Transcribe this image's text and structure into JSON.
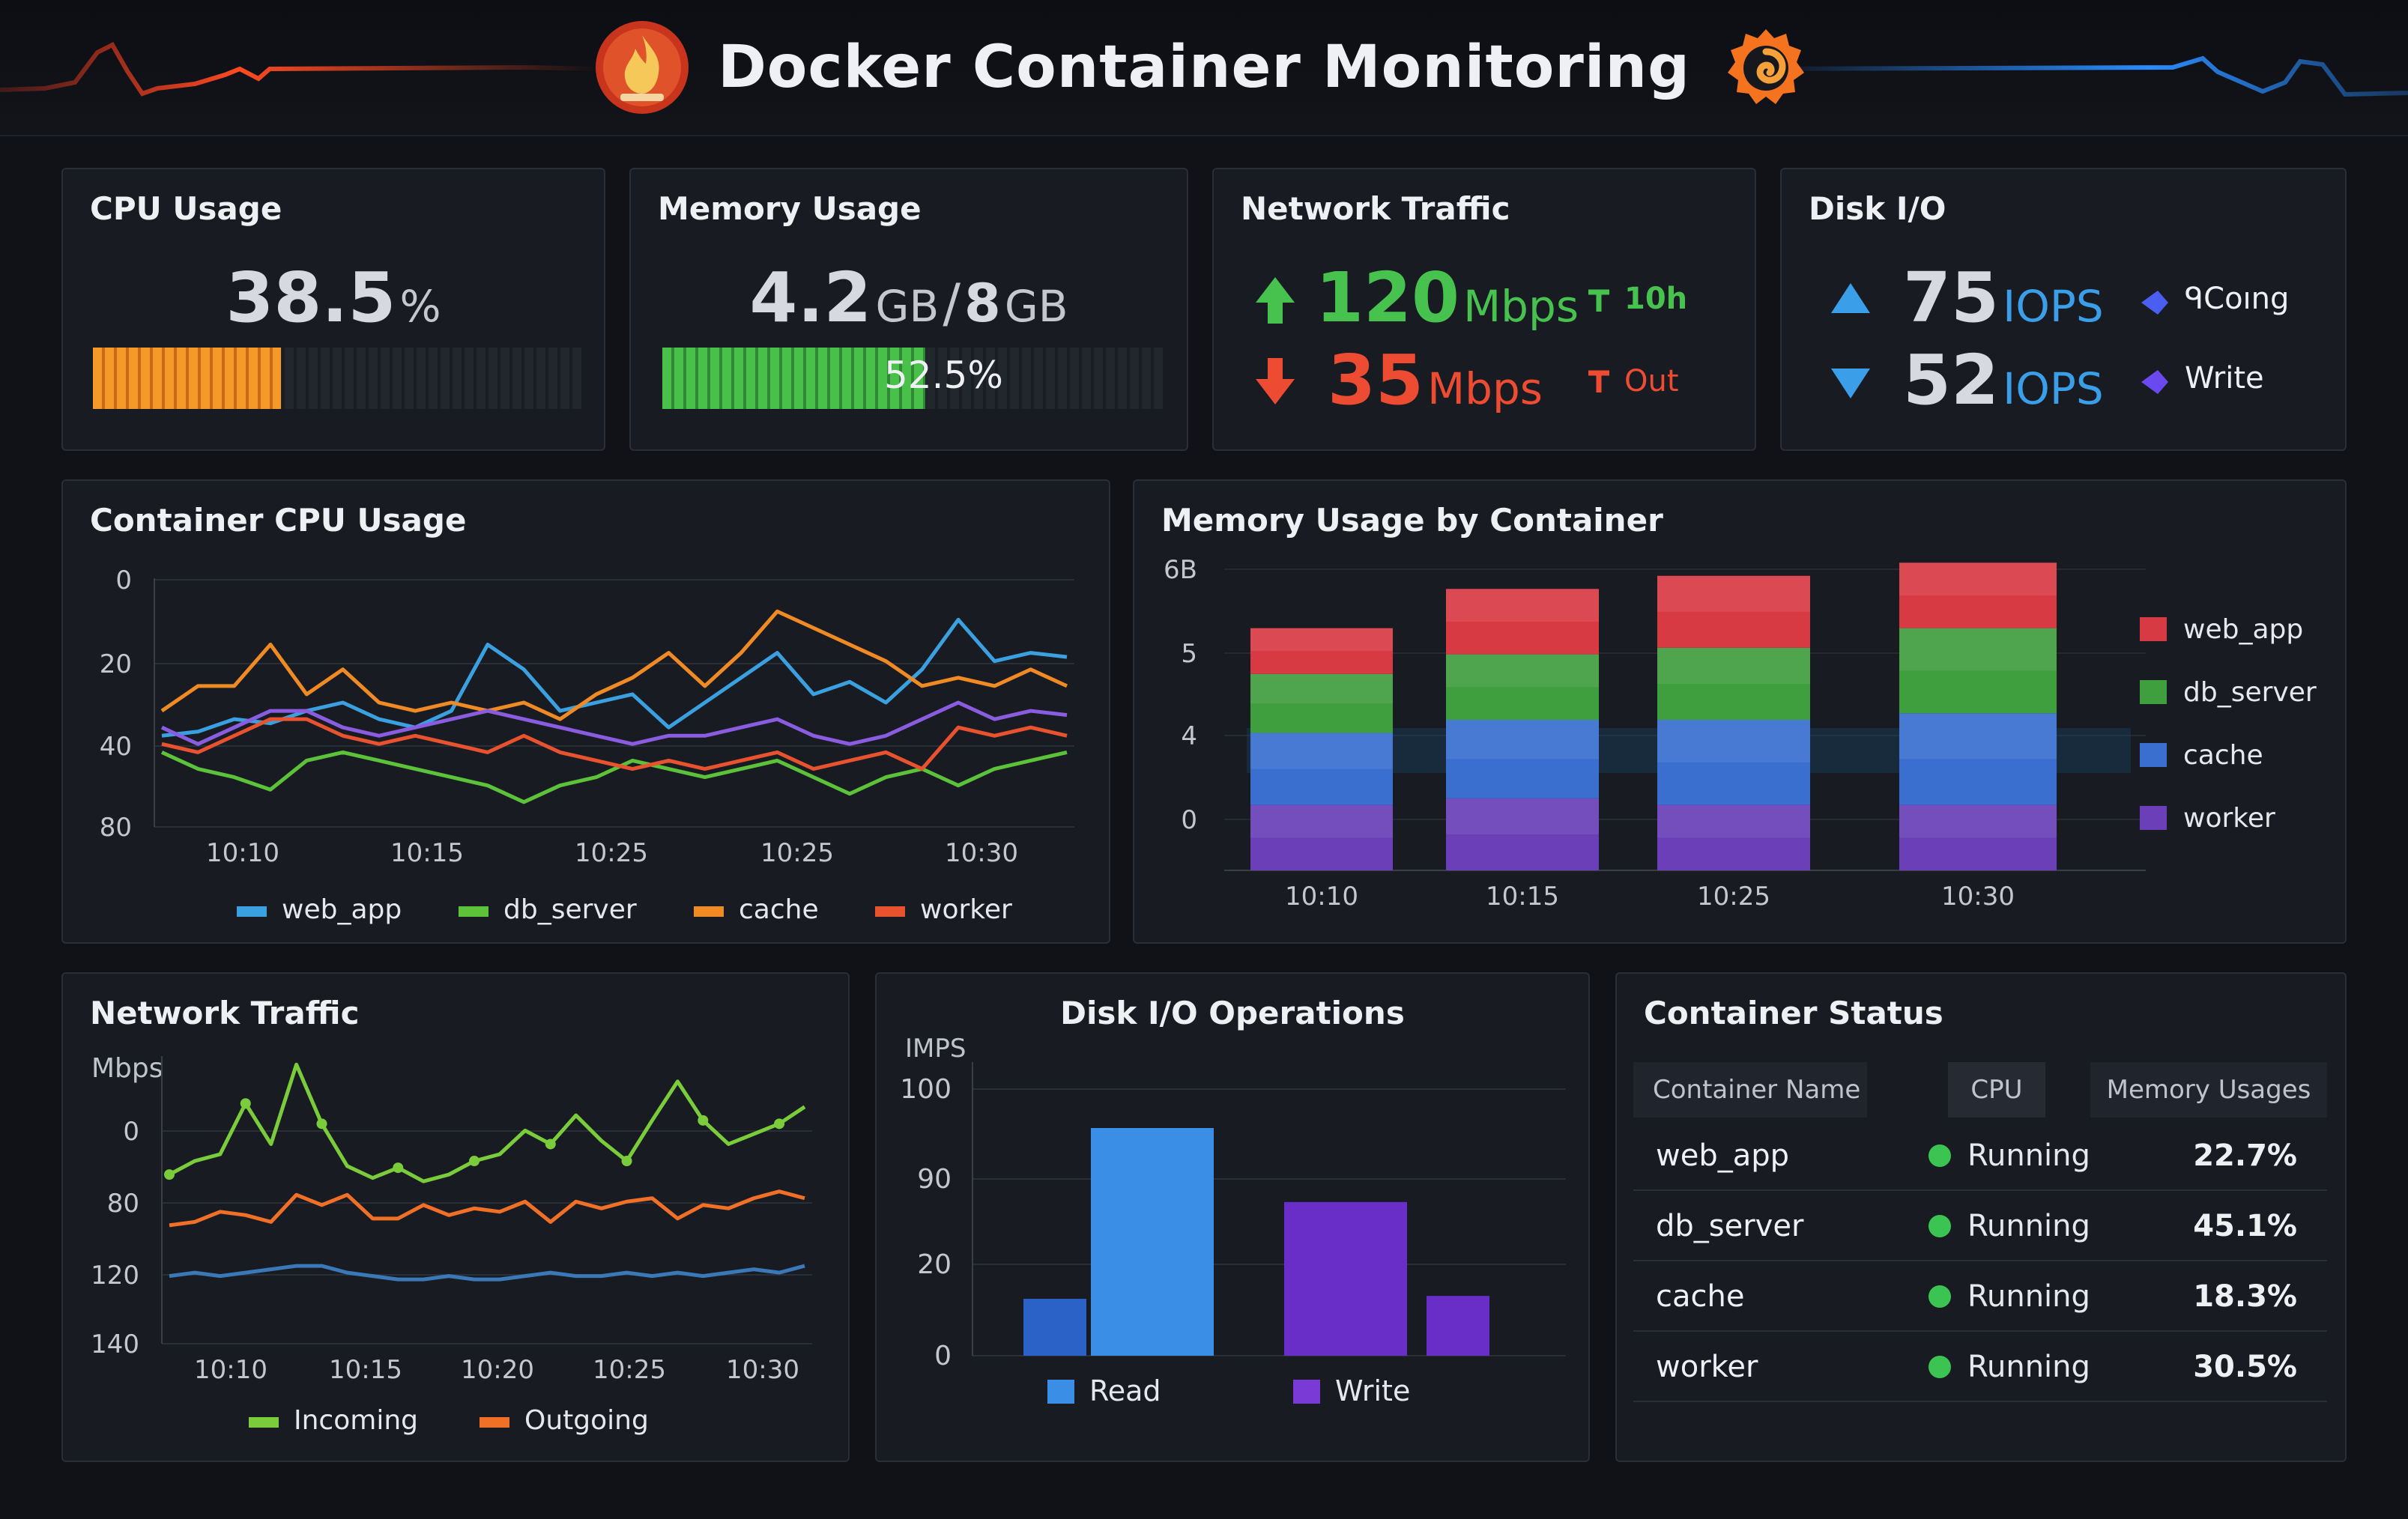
{
  "app": {
    "title": "Docker Container Monitoring"
  },
  "colors": {
    "cpu_bar": "#f08a24",
    "mem_bar": "#3fb24a",
    "up": "#47c24f",
    "down": "#ee4c32",
    "read": "#3a8ee6",
    "write": "#7a3ad6"
  },
  "icons": {
    "left_logo": "flame-logo-icon",
    "right_logo": "grafana-swirl-icon"
  },
  "stats": {
    "cpu": {
      "title": "CPU Usage",
      "value": "38.5",
      "unit": "%",
      "fraction": 0.385
    },
    "memory": {
      "title": "Memory Usage",
      "value": "4.2",
      "unit": "GB",
      "sep": "/",
      "total": "8",
      "total_unit": "GB",
      "percent": "52.5%",
      "fraction": 0.525
    },
    "network": {
      "title": "Network Traffic",
      "in_value": "120",
      "in_unit": "Mbps",
      "in_label": "10h",
      "out_value": "35",
      "out_unit": "Mbps",
      "out_label": "Out"
    },
    "disk": {
      "title": "Disk I/O",
      "read_value": "75",
      "read_unit": "IOPS",
      "read_label": "ᑫCoıng",
      "write_value": "52",
      "write_unit": "IOPS",
      "write_label": "Write"
    }
  },
  "cpu_panel": {
    "title": "Container CPU Usage",
    "chart_data": {
      "type": "line",
      "yticks": [
        "0",
        "20",
        "40",
        "80"
      ],
      "xticks": [
        "10:10",
        "10:15",
        "10:25",
        "10:25",
        "10:30"
      ],
      "ylim": [
        0,
        60
      ],
      "x": [
        0,
        1,
        2,
        3,
        4,
        5,
        6,
        7,
        8,
        9,
        10,
        11,
        12,
        13,
        14,
        15,
        16,
        17,
        18,
        19,
        20,
        21,
        22,
        23,
        24,
        25
      ],
      "series": [
        {
          "name": "web_app",
          "color": "#3aa0e0",
          "values": [
            22,
            23,
            26,
            25,
            28,
            30,
            26,
            24,
            28,
            44,
            38,
            28,
            30,
            32,
            24,
            30,
            36,
            42,
            32,
            35,
            30,
            38,
            50,
            40,
            42,
            41
          ]
        },
        {
          "name": "db_server",
          "color": "#5cc23a",
          "values": [
            18,
            14,
            12,
            9,
            16,
            18,
            16,
            14,
            12,
            10,
            6,
            10,
            12,
            16,
            14,
            12,
            14,
            16,
            12,
            8,
            12,
            14,
            10,
            14,
            16,
            18
          ]
        },
        {
          "name": "cache",
          "color": "#f08a24",
          "values": [
            28,
            34,
            34,
            44,
            32,
            38,
            30,
            28,
            30,
            28,
            30,
            26,
            32,
            36,
            42,
            34,
            42,
            52,
            48,
            44,
            40,
            34,
            36,
            34,
            38,
            34
          ]
        },
        {
          "name": "worker",
          "color": "#e8522e",
          "values": [
            20,
            18,
            22,
            26,
            26,
            22,
            20,
            22,
            20,
            18,
            22,
            18,
            16,
            14,
            16,
            14,
            16,
            18,
            14,
            16,
            18,
            14,
            24,
            22,
            24,
            22
          ]
        },
        {
          "name": "",
          "color": "#8a5ce0",
          "values": [
            24,
            20,
            24,
            28,
            28,
            24,
            22,
            24,
            26,
            28,
            26,
            24,
            22,
            20,
            22,
            22,
            24,
            26,
            22,
            20,
            22,
            26,
            30,
            26,
            28,
            27
          ]
        }
      ]
    }
  },
  "mem_panel": {
    "title": "Memory Usage by Container",
    "chart_data": {
      "type": "bar",
      "stacked": true,
      "yticks": [
        "0",
        "4",
        "5",
        "6B"
      ],
      "categories": [
        "10:10",
        "10:15",
        "10:25",
        "10:30"
      ],
      "series": [
        {
          "name": "worker",
          "color": "#6a3fb8",
          "values": [
            1.0,
            1.1,
            1.0,
            1.0
          ]
        },
        {
          "name": "cache",
          "color": "#3a6fd0",
          "values": [
            1.1,
            1.2,
            1.3,
            1.4
          ]
        },
        {
          "name": "db_server",
          "color": "#3f9e3e",
          "values": [
            0.9,
            1.0,
            1.1,
            1.3
          ]
        },
        {
          "name": "web_app",
          "color": "#d83a44",
          "values": [
            0.7,
            1.0,
            1.1,
            1.0
          ]
        }
      ],
      "ylim": [
        0,
        4.6
      ]
    }
  },
  "net_panel": {
    "title": "Network Traffic",
    "unit_label": "Mbps",
    "chart_data": {
      "type": "line",
      "yticks": [
        "0",
        "80",
        "120",
        "140"
      ],
      "xticks": [
        "10:10",
        "10:15",
        "10:20",
        "10:25",
        "10:30"
      ],
      "ylim": [
        0,
        170
      ],
      "x": [
        0,
        1,
        2,
        3,
        4,
        5,
        6,
        7,
        8,
        9,
        10,
        11,
        12,
        13,
        14,
        15,
        16,
        17,
        18,
        19,
        20,
        21,
        22,
        23,
        24,
        25
      ],
      "series": [
        {
          "name": "Incoming",
          "color": "#7acc3a",
          "values": [
            100,
            108,
            112,
            142,
            118,
            165,
            130,
            105,
            98,
            104,
            96,
            100,
            108,
            112,
            126,
            118,
            135,
            120,
            108,
            132,
            155,
            132,
            118,
            124,
            130,
            140
          ]
        },
        {
          "name": "Outgoing",
          "color": "#f07028",
          "values": [
            70,
            72,
            78,
            76,
            72,
            88,
            82,
            88,
            74,
            74,
            82,
            76,
            80,
            78,
            84,
            72,
            84,
            80,
            84,
            86,
            74,
            82,
            80,
            86,
            90,
            86
          ]
        },
        {
          "name": "",
          "color": "#3a78b8",
          "values": [
            40,
            42,
            40,
            42,
            44,
            46,
            46,
            42,
            40,
            38,
            38,
            40,
            38,
            38,
            40,
            42,
            40,
            40,
            42,
            40,
            42,
            40,
            42,
            44,
            42,
            46
          ]
        }
      ]
    }
  },
  "disk_panel": {
    "title": "Disk I/O Operations",
    "unit_label": "IMPS",
    "chart_data": {
      "type": "bar",
      "yticks": [
        "0",
        "20",
        "90",
        "100"
      ],
      "bars": [
        {
          "series": "Read",
          "color": "#2a62c8",
          "value": 20
        },
        {
          "series": "Read",
          "color": "#3a8ee6",
          "value": 80
        },
        {
          "series": "Write",
          "color": "#6a2ec8",
          "value": 54
        },
        {
          "series": "Write",
          "color": "#6a2ec8",
          "value": 21
        }
      ],
      "legend": [
        "Read",
        "Write"
      ],
      "ylim": [
        0,
        100
      ]
    }
  },
  "status_panel": {
    "title": "Container Status",
    "columns": [
      "Container Name",
      "CPU",
      "Memory Usages"
    ],
    "rows": [
      {
        "name": "web_app",
        "status": "Running",
        "memory": "22.7%"
      },
      {
        "name": "db_server",
        "status": "Running",
        "memory": "45.1%"
      },
      {
        "name": "cache",
        "status": "Running",
        "memory": "18.3%"
      },
      {
        "name": "worker",
        "status": "Running",
        "memory": "30.5%"
      }
    ]
  }
}
